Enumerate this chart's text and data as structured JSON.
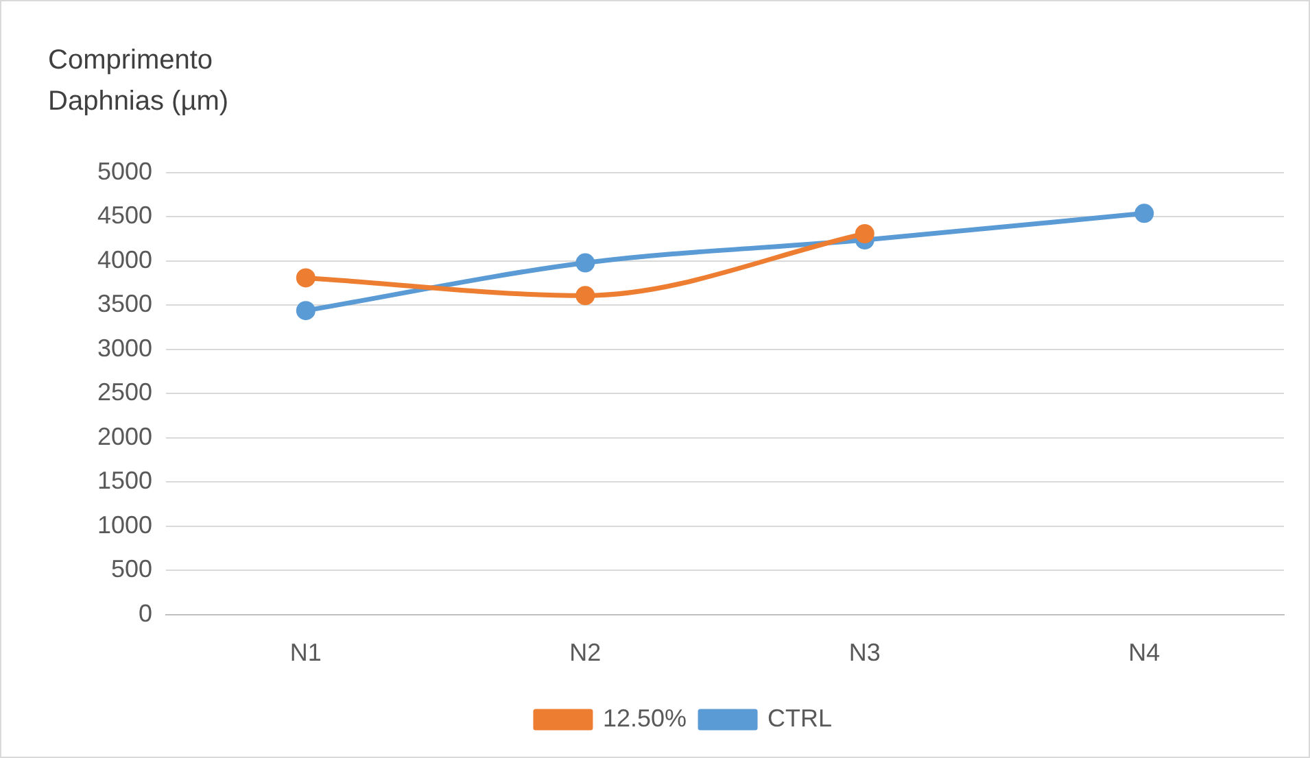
{
  "chart_data": {
    "type": "line",
    "ylabel": "Comprimento Daphnias (µm)",
    "categories": [
      "N1",
      "N2",
      "N3",
      "N4"
    ],
    "series": [
      {
        "name": "CTRL",
        "color": "#5b9bd5",
        "values": [
          3440,
          3980,
          4240,
          4540
        ]
      },
      {
        "name": "12.50%",
        "color": "#ed7d31",
        "values": [
          3810,
          3610,
          4310,
          null
        ]
      }
    ],
    "ylim": [
      0,
      5000
    ],
    "yticks": [
      0,
      500,
      1000,
      1500,
      2000,
      2500,
      3000,
      3500,
      4000,
      4500,
      5000
    ],
    "grid": "y",
    "legend": "bottom",
    "marker": "circle",
    "line_style": "solid"
  }
}
